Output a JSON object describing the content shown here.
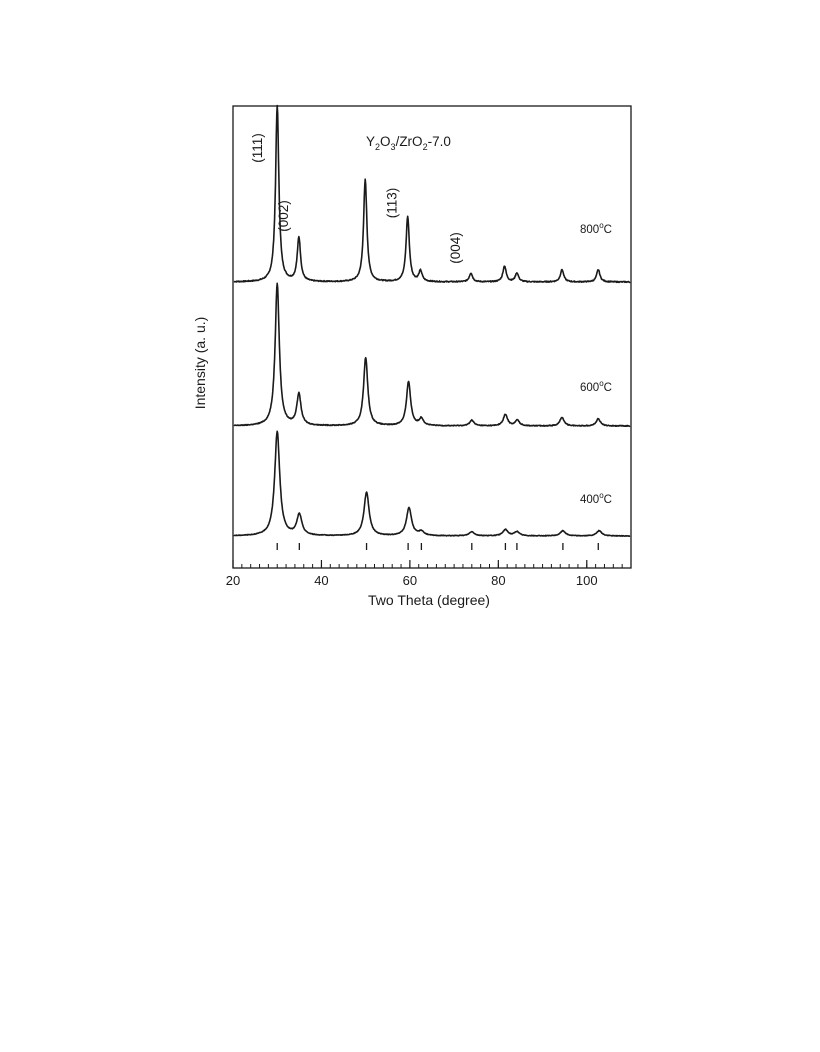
{
  "chart_data": {
    "type": "line",
    "title": "Y2O3/ZrO2-7.0",
    "title_parts": {
      "y": "Y",
      "y_sub": "2",
      "o": "O",
      "o_sub": "3",
      "slash_zr": "/ZrO",
      "zr_sub": "2",
      "tail": "-7.0"
    },
    "xlabel": "Two Theta (degree)",
    "ylabel": "Intensity (a. u.)",
    "xlim": [
      20,
      110
    ],
    "xticks": [
      "20",
      "40",
      "60",
      "80",
      "100"
    ],
    "xtick_values": [
      20,
      40,
      60,
      80,
      100
    ],
    "grid": false,
    "series": [
      {
        "name": "800oC",
        "label_main": "800",
        "label_sup": "o",
        "label_unit": "C",
        "color": "#1a1a1a",
        "peaks": [
          {
            "x": 30.0,
            "h": 1.0
          },
          {
            "x": 34.9,
            "h": 0.25
          },
          {
            "x": 49.9,
            "h": 0.58
          },
          {
            "x": 59.5,
            "h": 0.37
          },
          {
            "x": 62.4,
            "h": 0.06
          },
          {
            "x": 73.8,
            "h": 0.05
          },
          {
            "x": 81.4,
            "h": 0.09
          },
          {
            "x": 84.2,
            "h": 0.05
          },
          {
            "x": 94.4,
            "h": 0.07
          },
          {
            "x": 102.6,
            "h": 0.07
          }
        ]
      },
      {
        "name": "600oC",
        "label_main": "600",
        "label_sup": "o",
        "label_unit": "C",
        "color": "#1a1a1a",
        "peaks": [
          {
            "x": 30.0,
            "h": 1.0
          },
          {
            "x": 34.9,
            "h": 0.22
          },
          {
            "x": 50.0,
            "h": 0.48
          },
          {
            "x": 59.7,
            "h": 0.31
          },
          {
            "x": 62.6,
            "h": 0.05
          },
          {
            "x": 74.0,
            "h": 0.04
          },
          {
            "x": 81.6,
            "h": 0.08
          },
          {
            "x": 84.3,
            "h": 0.04
          },
          {
            "x": 94.4,
            "h": 0.06
          },
          {
            "x": 102.6,
            "h": 0.05
          }
        ]
      },
      {
        "name": "400oC",
        "label_main": "400",
        "label_sup": "o",
        "label_unit": "C",
        "color": "#1a1a1a",
        "peaks": [
          {
            "x": 30.0,
            "h": 1.0
          },
          {
            "x": 35.0,
            "h": 0.2
          },
          {
            "x": 50.2,
            "h": 0.42
          },
          {
            "x": 59.8,
            "h": 0.27
          },
          {
            "x": 62.6,
            "h": 0.04
          },
          {
            "x": 74.0,
            "h": 0.04
          },
          {
            "x": 81.6,
            "h": 0.06
          },
          {
            "x": 84.2,
            "h": 0.04
          },
          {
            "x": 94.6,
            "h": 0.05
          },
          {
            "x": 102.8,
            "h": 0.05
          }
        ]
      }
    ],
    "reference_ticks": [
      30.0,
      35.0,
      50.2,
      59.6,
      62.6,
      74.0,
      81.6,
      84.2,
      94.6,
      102.6
    ],
    "annotations": [
      {
        "text": "(111)",
        "x": 30.0
      },
      {
        "text": "(002)",
        "x": 34.9
      },
      {
        "text": "(113)",
        "x": 59.5
      },
      {
        "text": "(004)",
        "x": 73.8
      }
    ]
  }
}
